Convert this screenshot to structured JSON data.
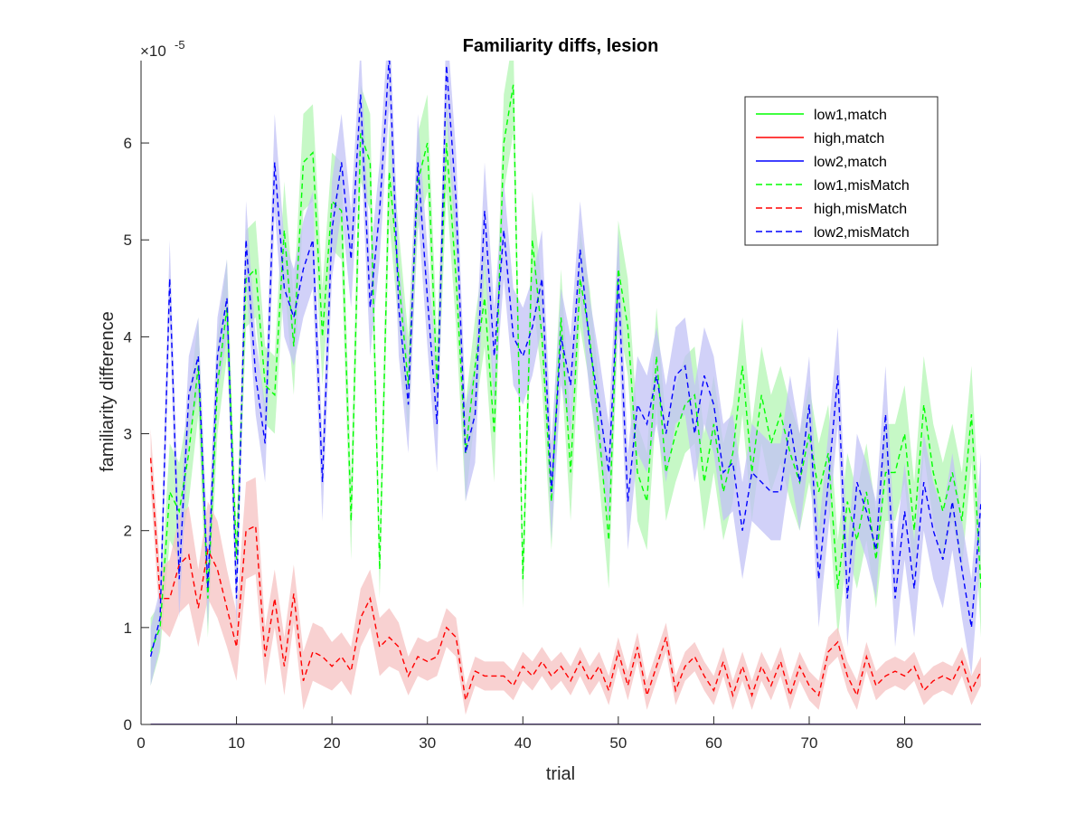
{
  "chart_data": {
    "type": "line",
    "title": "Familiarity diffs, lesion",
    "xlabel": "trial",
    "ylabel": "familiarity difference",
    "y_multiplier_label": "×10",
    "y_multiplier_exponent": "-5",
    "xlim": [
      0,
      88
    ],
    "ylim": [
      0,
      6.85
    ],
    "xticks": [
      0,
      10,
      20,
      30,
      40,
      50,
      60,
      70,
      80
    ],
    "yticks": [
      0,
      1,
      2,
      3,
      4,
      5,
      6
    ],
    "legend_position": "top-right",
    "grid": false,
    "x": [
      1,
      2,
      3,
      4,
      5,
      6,
      7,
      8,
      9,
      10,
      11,
      12,
      13,
      14,
      15,
      16,
      17,
      18,
      19,
      20,
      21,
      22,
      23,
      24,
      25,
      26,
      27,
      28,
      29,
      30,
      31,
      32,
      33,
      34,
      35,
      36,
      37,
      38,
      39,
      40,
      41,
      42,
      43,
      44,
      45,
      46,
      47,
      48,
      49,
      50,
      51,
      52,
      53,
      54,
      55,
      56,
      57,
      58,
      59,
      60,
      61,
      62,
      63,
      64,
      65,
      66,
      67,
      68,
      69,
      70,
      71,
      72,
      73,
      74,
      75,
      76,
      77,
      78,
      79,
      80,
      81,
      82,
      83,
      84,
      85,
      86,
      87,
      88
    ],
    "series": [
      {
        "name": "low1,match",
        "color": "#00ff00",
        "dash": "solid",
        "band_color": "",
        "values": [
          0,
          0,
          0,
          0,
          0,
          0,
          0,
          0,
          0,
          0,
          0,
          0,
          0,
          0,
          0,
          0,
          0,
          0,
          0,
          0,
          0,
          0,
          0,
          0,
          0,
          0,
          0,
          0,
          0,
          0,
          0,
          0,
          0,
          0,
          0,
          0,
          0,
          0,
          0,
          0,
          0,
          0,
          0,
          0,
          0,
          0,
          0,
          0,
          0,
          0,
          0,
          0,
          0,
          0,
          0,
          0,
          0,
          0,
          0,
          0,
          0,
          0,
          0,
          0,
          0,
          0,
          0,
          0,
          0,
          0,
          0,
          0,
          0,
          0,
          0,
          0,
          0,
          0,
          0,
          0,
          0,
          0,
          0,
          0,
          0,
          0,
          0,
          0
        ],
        "band": []
      },
      {
        "name": "high,match",
        "color": "#ff0000",
        "dash": "solid",
        "band_color": "",
        "values": [
          0,
          0,
          0,
          0,
          0,
          0,
          0,
          0,
          0,
          0,
          0,
          0,
          0,
          0,
          0,
          0,
          0,
          0,
          0,
          0,
          0,
          0,
          0,
          0,
          0,
          0,
          0,
          0,
          0,
          0,
          0,
          0,
          0,
          0,
          0,
          0,
          0,
          0,
          0,
          0,
          0,
          0,
          0,
          0,
          0,
          0,
          0,
          0,
          0,
          0,
          0,
          0,
          0,
          0,
          0,
          0,
          0,
          0,
          0,
          0,
          0,
          0,
          0,
          0,
          0,
          0,
          0,
          0,
          0,
          0,
          0,
          0,
          0,
          0,
          0,
          0,
          0,
          0,
          0,
          0,
          0,
          0,
          0,
          0,
          0,
          0,
          0,
          0
        ],
        "band": []
      },
      {
        "name": "low2,match",
        "color": "#0000ff",
        "dash": "solid",
        "band_color": "",
        "values": [
          0,
          0,
          0,
          0,
          0,
          0,
          0,
          0,
          0,
          0,
          0,
          0,
          0,
          0,
          0,
          0,
          0,
          0,
          0,
          0,
          0,
          0,
          0,
          0,
          0,
          0,
          0,
          0,
          0,
          0,
          0,
          0,
          0,
          0,
          0,
          0,
          0,
          0,
          0,
          0,
          0,
          0,
          0,
          0,
          0,
          0,
          0,
          0,
          0,
          0,
          0,
          0,
          0,
          0,
          0,
          0,
          0,
          0,
          0,
          0,
          0,
          0,
          0,
          0,
          0,
          0,
          0,
          0,
          0,
          0,
          0,
          0,
          0,
          0,
          0,
          0,
          0,
          0,
          0,
          0,
          0,
          0,
          0,
          0,
          0,
          0,
          0,
          0
        ],
        "band": []
      },
      {
        "name": "low1,misMatch",
        "color": "#00ff00",
        "dash": "dashed",
        "band_color": "#b3f5b3",
        "values": [
          0.75,
          1.0,
          2.4,
          2.2,
          2.8,
          3.7,
          1.3,
          3.5,
          4.3,
          1.7,
          4.6,
          4.7,
          3.5,
          3.4,
          5.1,
          3.9,
          5.8,
          5.9,
          4.0,
          5.4,
          5.3,
          2.1,
          6.1,
          5.8,
          1.6,
          5.7,
          4.6,
          3.5,
          5.6,
          6.0,
          3.5,
          6.0,
          4.6,
          2.8,
          3.7,
          4.4,
          3.0,
          6.0,
          6.6,
          1.5,
          5.0,
          4.0,
          2.3,
          4.2,
          2.6,
          4.6,
          4.0,
          3.0,
          1.9,
          4.7,
          4.1,
          2.6,
          2.3,
          3.8,
          2.6,
          3.0,
          3.3,
          3.4,
          2.5,
          3.1,
          2.4,
          2.8,
          3.7,
          2.6,
          3.4,
          2.9,
          3.2,
          2.8,
          2.5,
          3.0,
          2.4,
          2.8,
          1.4,
          2.3,
          1.9,
          2.4,
          1.7,
          2.6,
          2.6,
          3.0,
          2.0,
          3.3,
          2.6,
          2.2,
          2.6,
          2.1,
          3.2,
          1.4
        ],
        "band": [
          0.35,
          0.25,
          0.5,
          0.5,
          0.5,
          0.5,
          0.4,
          0.5,
          0.5,
          0.3,
          0.5,
          0.5,
          0.4,
          0.4,
          0.5,
          0.5,
          0.5,
          0.5,
          0.5,
          0.5,
          0.5,
          0.4,
          0.5,
          0.5,
          0.3,
          0.5,
          0.5,
          0.5,
          0.5,
          0.5,
          0.5,
          0.5,
          0.5,
          0.5,
          0.5,
          0.5,
          0.5,
          0.5,
          0.5,
          0.3,
          0.5,
          0.5,
          0.5,
          0.5,
          0.5,
          0.5,
          0.5,
          0.5,
          0.5,
          0.5,
          0.5,
          0.5,
          0.5,
          0.5,
          0.5,
          0.5,
          0.5,
          0.5,
          0.5,
          0.5,
          0.5,
          0.5,
          0.5,
          0.5,
          0.5,
          0.5,
          0.5,
          0.5,
          0.5,
          0.5,
          0.5,
          0.5,
          0.5,
          0.5,
          0.5,
          0.5,
          0.5,
          0.5,
          0.5,
          0.5,
          0.5,
          0.5,
          0.5,
          0.5,
          0.5,
          0.5,
          0.5,
          0.5
        ]
      },
      {
        "name": "high,misMatch",
        "color": "#ff0000",
        "dash": "dashed",
        "band_color": "#f5c2c2",
        "values": [
          2.75,
          1.3,
          1.3,
          1.65,
          1.75,
          1.2,
          1.8,
          1.6,
          1.2,
          0.8,
          2.0,
          2.05,
          0.7,
          1.3,
          0.6,
          1.35,
          0.45,
          0.75,
          0.7,
          0.6,
          0.7,
          0.55,
          1.1,
          1.3,
          0.8,
          0.9,
          0.8,
          0.5,
          0.7,
          0.65,
          0.7,
          1.0,
          0.9,
          0.25,
          0.55,
          0.5,
          0.5,
          0.5,
          0.4,
          0.6,
          0.5,
          0.65,
          0.5,
          0.6,
          0.45,
          0.65,
          0.45,
          0.6,
          0.35,
          0.75,
          0.4,
          0.8,
          0.3,
          0.6,
          0.9,
          0.35,
          0.6,
          0.7,
          0.5,
          0.35,
          0.65,
          0.3,
          0.6,
          0.3,
          0.6,
          0.4,
          0.65,
          0.3,
          0.6,
          0.4,
          0.3,
          0.75,
          0.85,
          0.5,
          0.3,
          0.7,
          0.4,
          0.5,
          0.55,
          0.5,
          0.6,
          0.35,
          0.45,
          0.5,
          0.45,
          0.65,
          0.35,
          0.55
        ],
        "band": [
          0.3,
          0.3,
          0.4,
          0.5,
          0.5,
          0.4,
          0.5,
          0.5,
          0.4,
          0.35,
          0.5,
          0.5,
          0.3,
          0.3,
          0.3,
          0.3,
          0.3,
          0.3,
          0.3,
          0.25,
          0.25,
          0.25,
          0.3,
          0.3,
          0.3,
          0.3,
          0.25,
          0.2,
          0.2,
          0.2,
          0.2,
          0.2,
          0.2,
          0.15,
          0.15,
          0.15,
          0.15,
          0.15,
          0.15,
          0.15,
          0.15,
          0.15,
          0.15,
          0.15,
          0.15,
          0.15,
          0.15,
          0.15,
          0.15,
          0.15,
          0.15,
          0.15,
          0.15,
          0.15,
          0.15,
          0.15,
          0.15,
          0.15,
          0.15,
          0.15,
          0.15,
          0.15,
          0.15,
          0.15,
          0.15,
          0.15,
          0.15,
          0.15,
          0.15,
          0.15,
          0.15,
          0.15,
          0.15,
          0.15,
          0.15,
          0.15,
          0.15,
          0.15,
          0.15,
          0.15,
          0.15,
          0.15,
          0.15,
          0.15,
          0.15,
          0.15,
          0.15,
          0.15
        ]
      },
      {
        "name": "low2,misMatch",
        "color": "#0000ff",
        "dash": "dashed",
        "band_color": "#c2c2f5",
        "values": [
          0.7,
          1.1,
          4.6,
          1.5,
          3.4,
          3.8,
          1.4,
          3.8,
          4.4,
          1.3,
          5.0,
          3.6,
          2.9,
          5.8,
          4.5,
          4.2,
          4.7,
          5.0,
          2.5,
          5.1,
          5.8,
          4.8,
          6.5,
          4.3,
          5.3,
          6.9,
          4.3,
          3.3,
          5.8,
          4.4,
          3.1,
          6.8,
          5.4,
          2.8,
          3.2,
          5.3,
          3.8,
          5.1,
          4.0,
          3.8,
          4.1,
          4.6,
          2.4,
          4.0,
          3.5,
          4.9,
          3.9,
          3.3,
          2.6,
          4.6,
          2.3,
          3.3,
          3.1,
          3.6,
          3.0,
          3.6,
          3.7,
          3.0,
          3.6,
          3.3,
          2.6,
          2.7,
          2.0,
          2.6,
          2.5,
          2.4,
          2.4,
          3.1,
          2.5,
          3.3,
          1.5,
          2.5,
          3.6,
          1.3,
          2.5,
          2.2,
          1.8,
          3.2,
          1.3,
          2.2,
          1.4,
          2.5,
          2.0,
          1.7,
          2.3,
          1.6,
          1.0,
          2.3
        ],
        "band": [
          0.3,
          0.3,
          0.4,
          0.4,
          0.4,
          0.4,
          0.4,
          0.4,
          0.4,
          0.3,
          0.4,
          0.4,
          0.4,
          0.5,
          0.5,
          0.5,
          0.5,
          0.5,
          0.4,
          0.5,
          0.5,
          0.5,
          0.5,
          0.5,
          0.5,
          0.5,
          0.5,
          0.5,
          0.5,
          0.5,
          0.5,
          0.5,
          0.5,
          0.5,
          0.5,
          0.5,
          0.5,
          0.5,
          0.5,
          0.5,
          0.5,
          0.5,
          0.5,
          0.5,
          0.5,
          0.5,
          0.5,
          0.5,
          0.5,
          0.5,
          0.5,
          0.5,
          0.5,
          0.5,
          0.5,
          0.5,
          0.5,
          0.5,
          0.5,
          0.5,
          0.5,
          0.5,
          0.5,
          0.5,
          0.5,
          0.5,
          0.5,
          0.5,
          0.5,
          0.5,
          0.5,
          0.5,
          0.5,
          0.5,
          0.5,
          0.5,
          0.5,
          0.5,
          0.5,
          0.5,
          0.5,
          0.5,
          0.5,
          0.5,
          0.5,
          0.5,
          0.5,
          0.5
        ]
      }
    ]
  }
}
